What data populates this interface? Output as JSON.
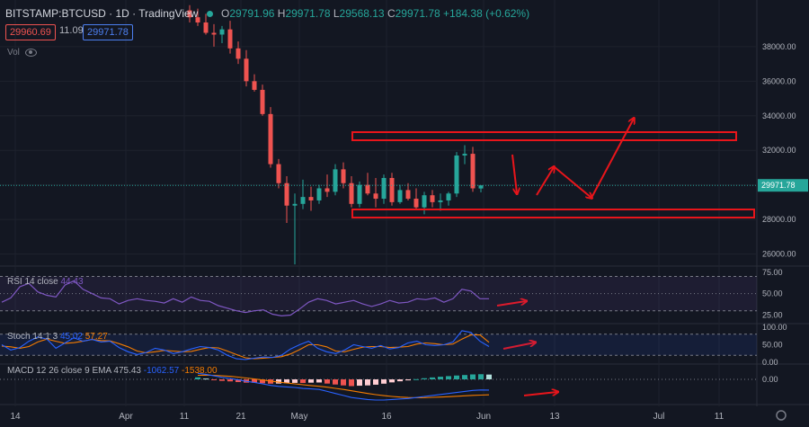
{
  "header": {
    "symbol": "BITSTAMP:BTCUSD",
    "interval": "1D",
    "source": "TradingView",
    "o_label": "O",
    "o_value": "29791.96",
    "h_label": "H",
    "h_value": "29971.78",
    "l_label": "L",
    "l_value": "29568.13",
    "c_label": "C",
    "c_value": "29971.78",
    "change": "+184.38 (+0.62%)",
    "sell_price": "29960.69",
    "spread": "11.09",
    "buy_price": "29971.78",
    "vol_label": "Vol"
  },
  "indicators": {
    "rsi_label": "RSI 14 close",
    "rsi_value": "44.43",
    "stoch_label": "Stoch 14 1 3",
    "stoch_k": "45.02",
    "stoch_d": "57.27",
    "macd_label": "MACD 12 26 close 9 EMA",
    "macd_hist": "475.43",
    "macd_line": "-1062.57",
    "macd_signal": "-1538.00"
  },
  "colors": {
    "background": "#131722",
    "up": "#26a69a",
    "down": "#ef5350",
    "annotation": "#e8151b",
    "rsi": "#7e57c2",
    "stoch_k": "#2962ff",
    "stoch_d": "#f57c00",
    "grid": "#1e222d"
  },
  "chart_data": {
    "type": "candlestick",
    "price_axis": {
      "ticks": [
        "38000.00",
        "36000.00",
        "34000.00",
        "32000.00",
        "30000.00",
        "28000.00",
        "26000.00"
      ],
      "current_price": "29971.78",
      "range": [
        25300,
        40700
      ]
    },
    "x_axis": {
      "ticks": [
        "14",
        "Apr",
        "11",
        "21",
        "May",
        "16",
        "Jun",
        "13",
        "Jul",
        "11"
      ]
    },
    "candles": [
      {
        "o": 40100,
        "h": 40400,
        "l": 39400,
        "c": 39700
      },
      {
        "o": 39700,
        "h": 40200,
        "l": 39200,
        "c": 39400
      },
      {
        "o": 39400,
        "h": 39900,
        "l": 38700,
        "c": 38800
      },
      {
        "o": 38800,
        "h": 39300,
        "l": 38000,
        "c": 38700
      },
      {
        "o": 38700,
        "h": 39200,
        "l": 38200,
        "c": 39000
      },
      {
        "o": 39000,
        "h": 39500,
        "l": 37600,
        "c": 37900
      },
      {
        "o": 37900,
        "h": 38300,
        "l": 37000,
        "c": 37300
      },
      {
        "o": 37300,
        "h": 37800,
        "l": 35700,
        "c": 36000
      },
      {
        "o": 36000,
        "h": 36400,
        "l": 35400,
        "c": 35500
      },
      {
        "o": 35500,
        "h": 35800,
        "l": 34000,
        "c": 34100
      },
      {
        "o": 34100,
        "h": 34500,
        "l": 31000,
        "c": 31200
      },
      {
        "o": 31200,
        "h": 31500,
        "l": 29800,
        "c": 30100
      },
      {
        "o": 30100,
        "h": 30500,
        "l": 27800,
        "c": 28800
      },
      {
        "o": 28800,
        "h": 29500,
        "l": 25400,
        "c": 28900
      },
      {
        "o": 28900,
        "h": 30300,
        "l": 28600,
        "c": 29300
      },
      {
        "o": 29300,
        "h": 29900,
        "l": 28500,
        "c": 29100
      },
      {
        "o": 29100,
        "h": 30000,
        "l": 28900,
        "c": 29800
      },
      {
        "o": 29800,
        "h": 30600,
        "l": 29300,
        "c": 29600
      },
      {
        "o": 29600,
        "h": 31200,
        "l": 29400,
        "c": 30900
      },
      {
        "o": 30900,
        "h": 31300,
        "l": 29800,
        "c": 30100
      },
      {
        "o": 30100,
        "h": 30500,
        "l": 28700,
        "c": 28900
      },
      {
        "o": 28900,
        "h": 30200,
        "l": 28700,
        "c": 30000
      },
      {
        "o": 30000,
        "h": 30700,
        "l": 29400,
        "c": 29500
      },
      {
        "o": 29500,
        "h": 30400,
        "l": 28700,
        "c": 29200
      },
      {
        "o": 29200,
        "h": 30600,
        "l": 28900,
        "c": 30400
      },
      {
        "o": 30400,
        "h": 30700,
        "l": 28800,
        "c": 29000
      },
      {
        "o": 29000,
        "h": 30000,
        "l": 28900,
        "c": 29700
      },
      {
        "o": 29700,
        "h": 30100,
        "l": 29100,
        "c": 29200
      },
      {
        "o": 29200,
        "h": 29800,
        "l": 28600,
        "c": 28700
      },
      {
        "o": 28700,
        "h": 29600,
        "l": 28300,
        "c": 29400
      },
      {
        "o": 29400,
        "h": 29700,
        "l": 28700,
        "c": 29000
      },
      {
        "o": 29000,
        "h": 29500,
        "l": 28500,
        "c": 29100
      },
      {
        "o": 29100,
        "h": 29600,
        "l": 28800,
        "c": 29500
      },
      {
        "o": 29500,
        "h": 31900,
        "l": 29300,
        "c": 31700
      },
      {
        "o": 31700,
        "h": 32300,
        "l": 31200,
        "c": 31800
      },
      {
        "o": 31800,
        "h": 32200,
        "l": 29600,
        "c": 29800
      },
      {
        "o": 29792,
        "h": 29972,
        "l": 29568,
        "c": 29972
      }
    ],
    "rsi": {
      "axis_ticks": [
        "75.00",
        "50.00",
        "25.00"
      ],
      "bands": [
        70,
        30
      ],
      "values": [
        40,
        45,
        58,
        62,
        52,
        48,
        46,
        60,
        65,
        55,
        50,
        45,
        44,
        38,
        42,
        44,
        42,
        41,
        39,
        44,
        40,
        46,
        42,
        41,
        36,
        33,
        30,
        28,
        30,
        31,
        26,
        24,
        25,
        32,
        40,
        44,
        42,
        38,
        40,
        42,
        38,
        35,
        38,
        42,
        39,
        40,
        44,
        43,
        45,
        40,
        44,
        55,
        53,
        44,
        44
      ]
    },
    "stoch": {
      "axis_ticks": [
        "100.00",
        "50.00",
        "0.00"
      ],
      "bands": [
        80,
        20
      ],
      "k": [
        50,
        35,
        42,
        60,
        72,
        66,
        40,
        55,
        70,
        60,
        65,
        58,
        60,
        42,
        30,
        22,
        28,
        40,
        35,
        25,
        30,
        38,
        45,
        42,
        35,
        20,
        10,
        8,
        12,
        15,
        14,
        20,
        38,
        50,
        60,
        40,
        30,
        25,
        35,
        50,
        45,
        40,
        48,
        38,
        42,
        55,
        60,
        50,
        48,
        50,
        58,
        90,
        85,
        60,
        45
      ],
      "d": [
        46,
        44,
        40,
        45,
        58,
        66,
        60,
        54,
        56,
        60,
        65,
        62,
        61,
        53,
        44,
        32,
        27,
        30,
        34,
        32,
        30,
        31,
        37,
        42,
        41,
        32,
        22,
        13,
        10,
        12,
        14,
        16,
        24,
        36,
        50,
        50,
        44,
        32,
        30,
        37,
        43,
        45,
        45,
        42,
        43,
        45,
        52,
        55,
        53,
        50,
        52,
        66,
        78,
        78,
        57
      ]
    },
    "macd": {
      "axis_ticks": [
        "0.00"
      ],
      "macd": [
        600,
        500,
        350,
        200,
        100,
        -50,
        -200,
        -300,
        -450,
        -600,
        -700,
        -750,
        -800,
        -900,
        -950,
        -1000,
        -1200,
        -1400,
        -1600,
        -1800,
        -1900,
        -2000,
        -2050,
        -2050,
        -2000,
        -1950,
        -1900,
        -1800,
        -1700,
        -1600,
        -1500,
        -1400,
        -1300,
        -1200,
        -1100,
        -1050,
        -1062
      ],
      "signal": [
        400,
        420,
        400,
        350,
        300,
        220,
        130,
        40,
        -60,
        -170,
        -280,
        -370,
        -450,
        -540,
        -620,
        -690,
        -780,
        -890,
        -1000,
        -1130,
        -1270,
        -1400,
        -1520,
        -1620,
        -1700,
        -1760,
        -1800,
        -1820,
        -1810,
        -1790,
        -1760,
        -1720,
        -1680,
        -1630,
        -1590,
        -1560,
        -1538
      ],
      "histogram": [
        200,
        80,
        -50,
        -150,
        -200,
        -270,
        -330,
        -340,
        -390,
        -430,
        -420,
        -380,
        -350,
        -360,
        -330,
        -310,
        -420,
        -510,
        -600,
        -670,
        -630,
        -600,
        -530,
        -430,
        -300,
        -190,
        -100,
        20,
        110,
        190,
        260,
        320,
        380,
        430,
        490,
        510,
        475
      ]
    }
  }
}
